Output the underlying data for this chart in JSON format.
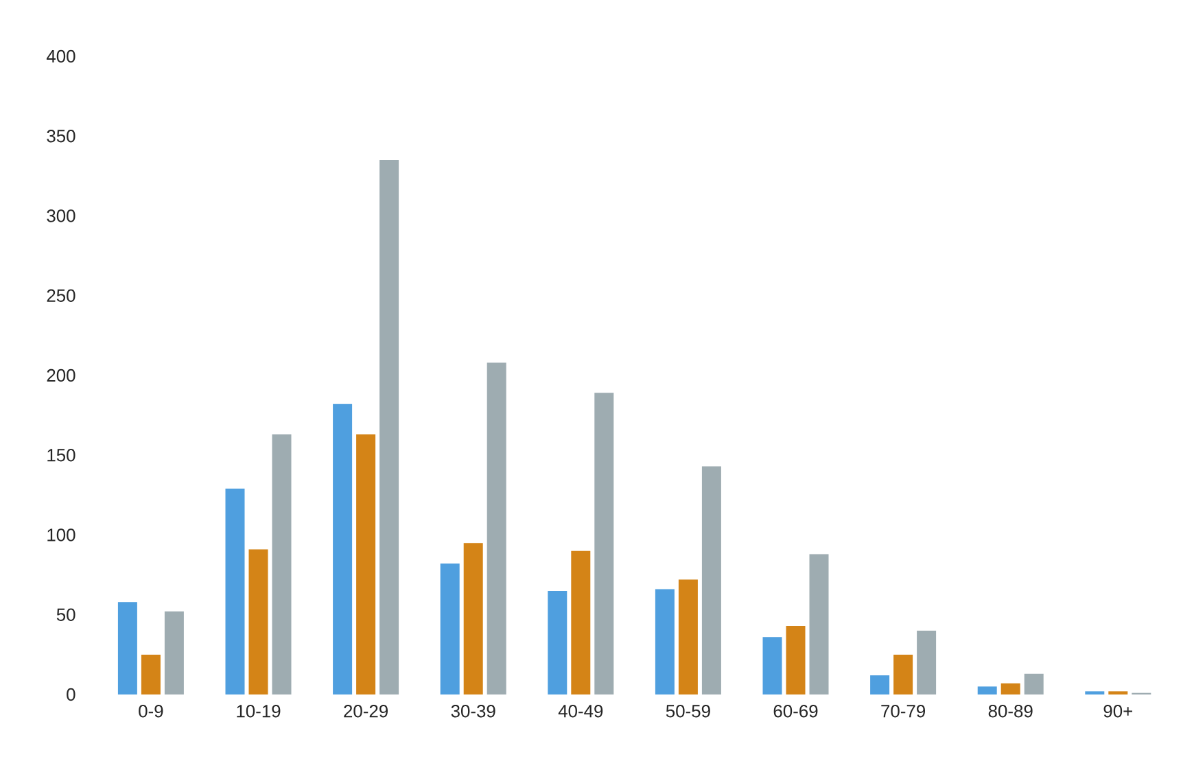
{
  "chart_data": {
    "type": "bar",
    "categories": [
      "0-9",
      "10-19",
      "20-29",
      "30-39",
      "40-49",
      "50-59",
      "60-69",
      "70-79",
      "80-89",
      "90+"
    ],
    "series": [
      {
        "color": "#4f9fdf",
        "values": [
          58,
          129,
          182,
          82,
          65,
          66,
          36,
          12,
          5,
          2
        ]
      },
      {
        "color": "#d48417",
        "values": [
          25,
          91,
          163,
          95,
          90,
          72,
          43,
          25,
          7,
          2
        ]
      },
      {
        "color": "#9eacb1",
        "values": [
          52,
          163,
          335,
          208,
          189,
          143,
          88,
          40,
          13,
          1
        ]
      }
    ],
    "ylim": [
      0,
      400
    ],
    "yticks": [
      0,
      50,
      100,
      150,
      200,
      250,
      300,
      350,
      400
    ]
  }
}
